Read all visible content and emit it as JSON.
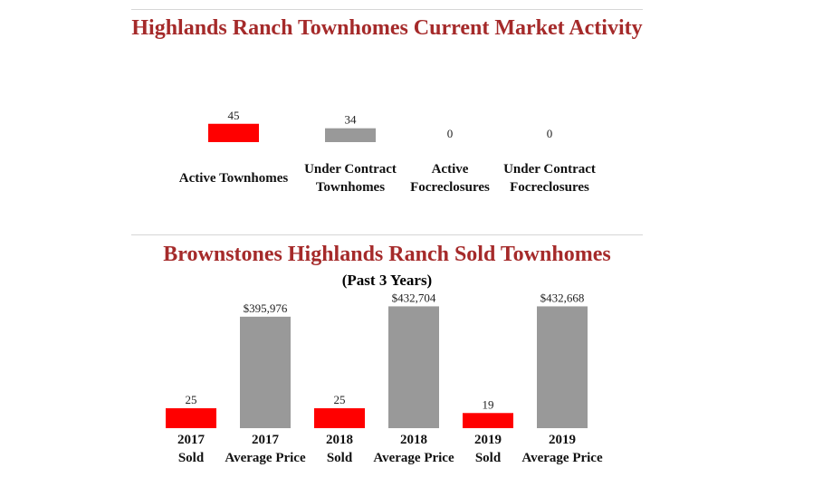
{
  "chart_data": [
    {
      "type": "bar",
      "title": "Highlands Ranch Townhomes Current Market Activity",
      "categories": [
        [
          "Active Townhomes"
        ],
        [
          "Under Contract",
          "Townhomes"
        ],
        [
          "Active",
          "Focreclosures"
        ],
        [
          "Under Contract",
          "Focreclosures"
        ]
      ],
      "values": [
        45,
        34,
        0,
        0
      ],
      "value_labels": [
        "45",
        "34",
        "0",
        "0"
      ],
      "colors": [
        "#ff0000",
        "#999999",
        "#999999",
        "#999999"
      ],
      "ylim": [
        0,
        250
      ],
      "grid": false,
      "legend": false
    },
    {
      "type": "bar",
      "title": "Brownstones Highlands Ranch Sold Townhomes",
      "subtitle": "(Past 3 Years)",
      "categories": [
        [
          "2017",
          "Sold"
        ],
        [
          "2017",
          "Average Price"
        ],
        [
          "2018",
          "Sold"
        ],
        [
          "2018",
          "Average Price"
        ],
        [
          "2019",
          "Sold"
        ],
        [
          "2019",
          "Average Price"
        ]
      ],
      "values": [
        25,
        395976,
        25,
        432704,
        19,
        432668
      ],
      "value_labels": [
        "25",
        "$395,976",
        "25",
        "$432,704",
        "19",
        "$432,668"
      ],
      "colors": [
        "#ff0000",
        "#999999",
        "#ff0000",
        "#999999",
        "#ff0000",
        "#999999"
      ],
      "grid": false,
      "legend": false
    }
  ]
}
